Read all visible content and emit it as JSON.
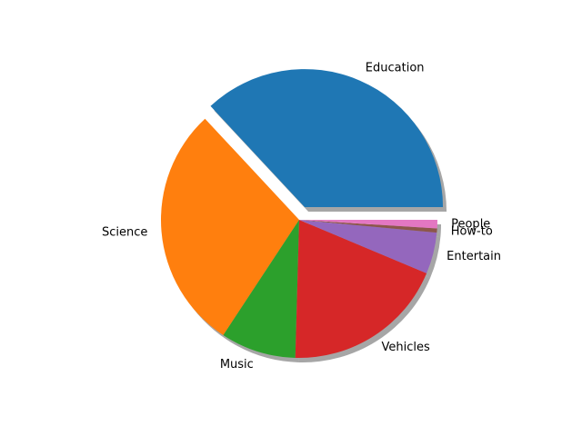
{
  "chart_data": {
    "type": "pie",
    "title": "",
    "start_angle_deg": 0,
    "direction": "counterclockwise",
    "shadow": true,
    "slices": [
      {
        "label": "Education",
        "value": 37.3,
        "color": "#1f77b4",
        "explode": 0.1
      },
      {
        "label": "Science",
        "value": 29.1,
        "color": "#ff7f0e",
        "explode": 0
      },
      {
        "label": "Music",
        "value": 8.9,
        "color": "#2ca02c",
        "explode": 0
      },
      {
        "label": "Vehicles",
        "value": 19.3,
        "color": "#d62728",
        "explode": 0
      },
      {
        "label": "Entertain",
        "value": 4.9,
        "color": "#9467bd",
        "explode": 0
      },
      {
        "label": "How-to",
        "value": 0.5,
        "color": "#8c564b",
        "explode": 0
      },
      {
        "label": "People",
        "value": 1.0,
        "color": "#e377c2",
        "explode": 0
      }
    ]
  }
}
